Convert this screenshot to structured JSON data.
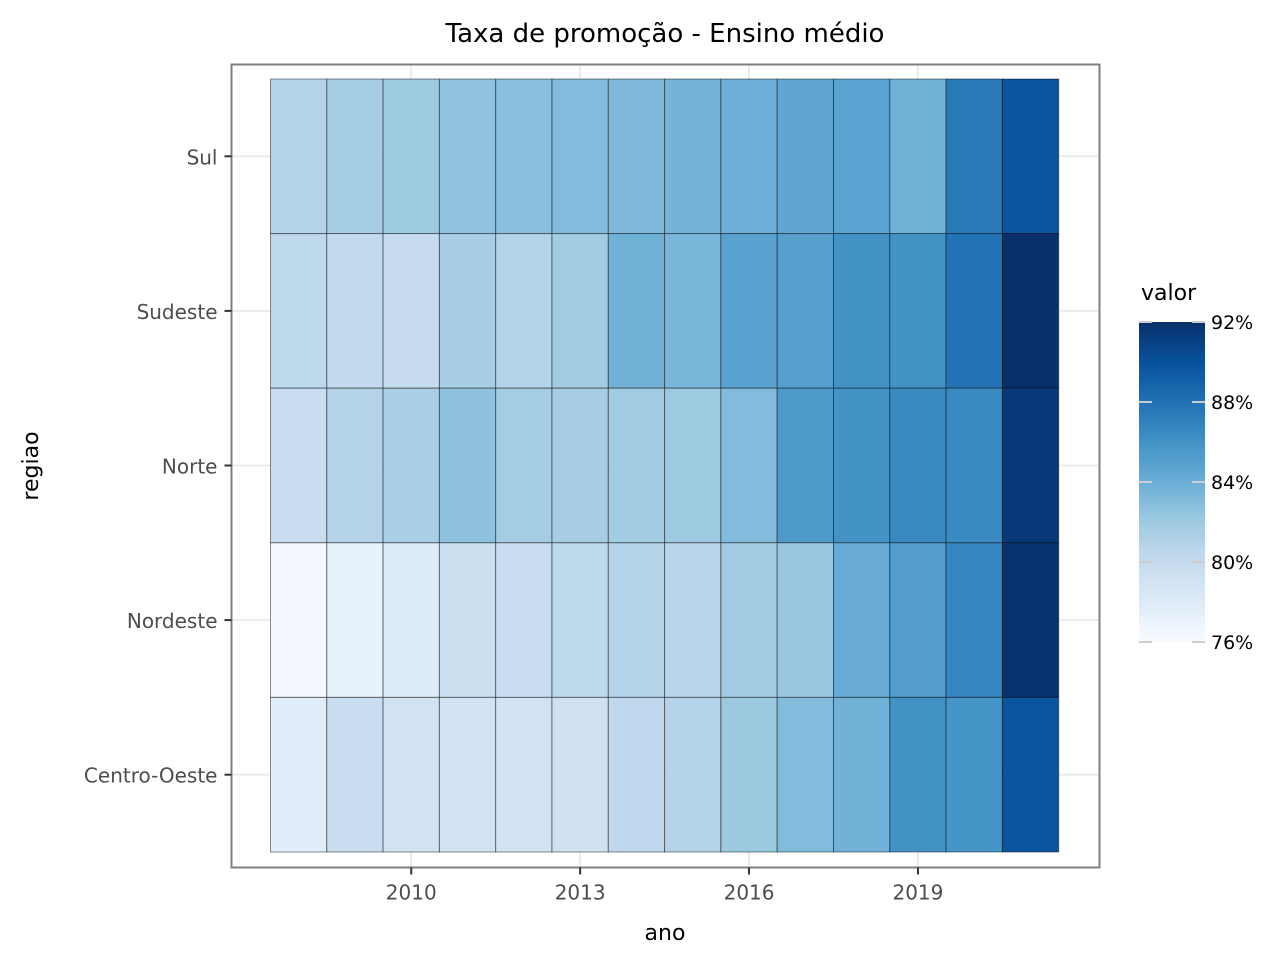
{
  "chart_data": {
    "type": "heatmap",
    "title": "Taxa de promoção - Ensino médio",
    "xlabel": "ano",
    "ylabel": "regiao",
    "x": [
      2008,
      2009,
      2010,
      2011,
      2012,
      2013,
      2014,
      2015,
      2016,
      2017,
      2018,
      2019,
      2020,
      2021
    ],
    "x_ticks": [
      2010,
      2013,
      2016,
      2019
    ],
    "x_tick_labels": [
      "2010",
      "2013",
      "2016",
      "2019"
    ],
    "categories": [
      "Sul",
      "Sudeste",
      "Norte",
      "Nordeste",
      "Centro-Oeste"
    ],
    "values": [
      [
        80.9,
        81.7,
        82.0,
        82.5,
        82.8,
        83.1,
        83.2,
        83.6,
        83.9,
        84.6,
        84.8,
        83.8,
        87.5,
        89.8
      ],
      [
        80.4,
        80.1,
        79.9,
        81.5,
        81.0,
        81.8,
        83.8,
        83.4,
        84.9,
        85.0,
        86.0,
        86.0,
        87.9,
        92.0
      ],
      [
        79.8,
        80.9,
        81.4,
        82.6,
        81.7,
        81.6,
        81.8,
        82.0,
        83.1,
        85.4,
        85.9,
        86.5,
        86.5,
        91.5
      ],
      [
        76.3,
        77.3,
        78.1,
        79.5,
        79.7,
        80.4,
        80.9,
        80.7,
        81.9,
        82.2,
        84.2,
        85.2,
        86.7,
        91.8
      ],
      [
        77.8,
        79.8,
        79.1,
        79.1,
        79.1,
        79.2,
        80.3,
        80.9,
        82.1,
        83.1,
        83.7,
        86.0,
        85.8,
        89.8
      ]
    ],
    "value_range": [
      76,
      92
    ],
    "legend": {
      "title": "valor",
      "ticks": [
        76,
        80,
        84,
        88,
        92
      ],
      "tick_labels": [
        "76%",
        "80%",
        "84%",
        "88%",
        "92%"
      ],
      "position": "right"
    },
    "colormap": [
      "#f7fbff",
      "#deebf7",
      "#c6dbef",
      "#9ecae1",
      "#6baed6",
      "#4292c6",
      "#2171b5",
      "#08519c",
      "#08306b"
    ],
    "grid": true
  }
}
